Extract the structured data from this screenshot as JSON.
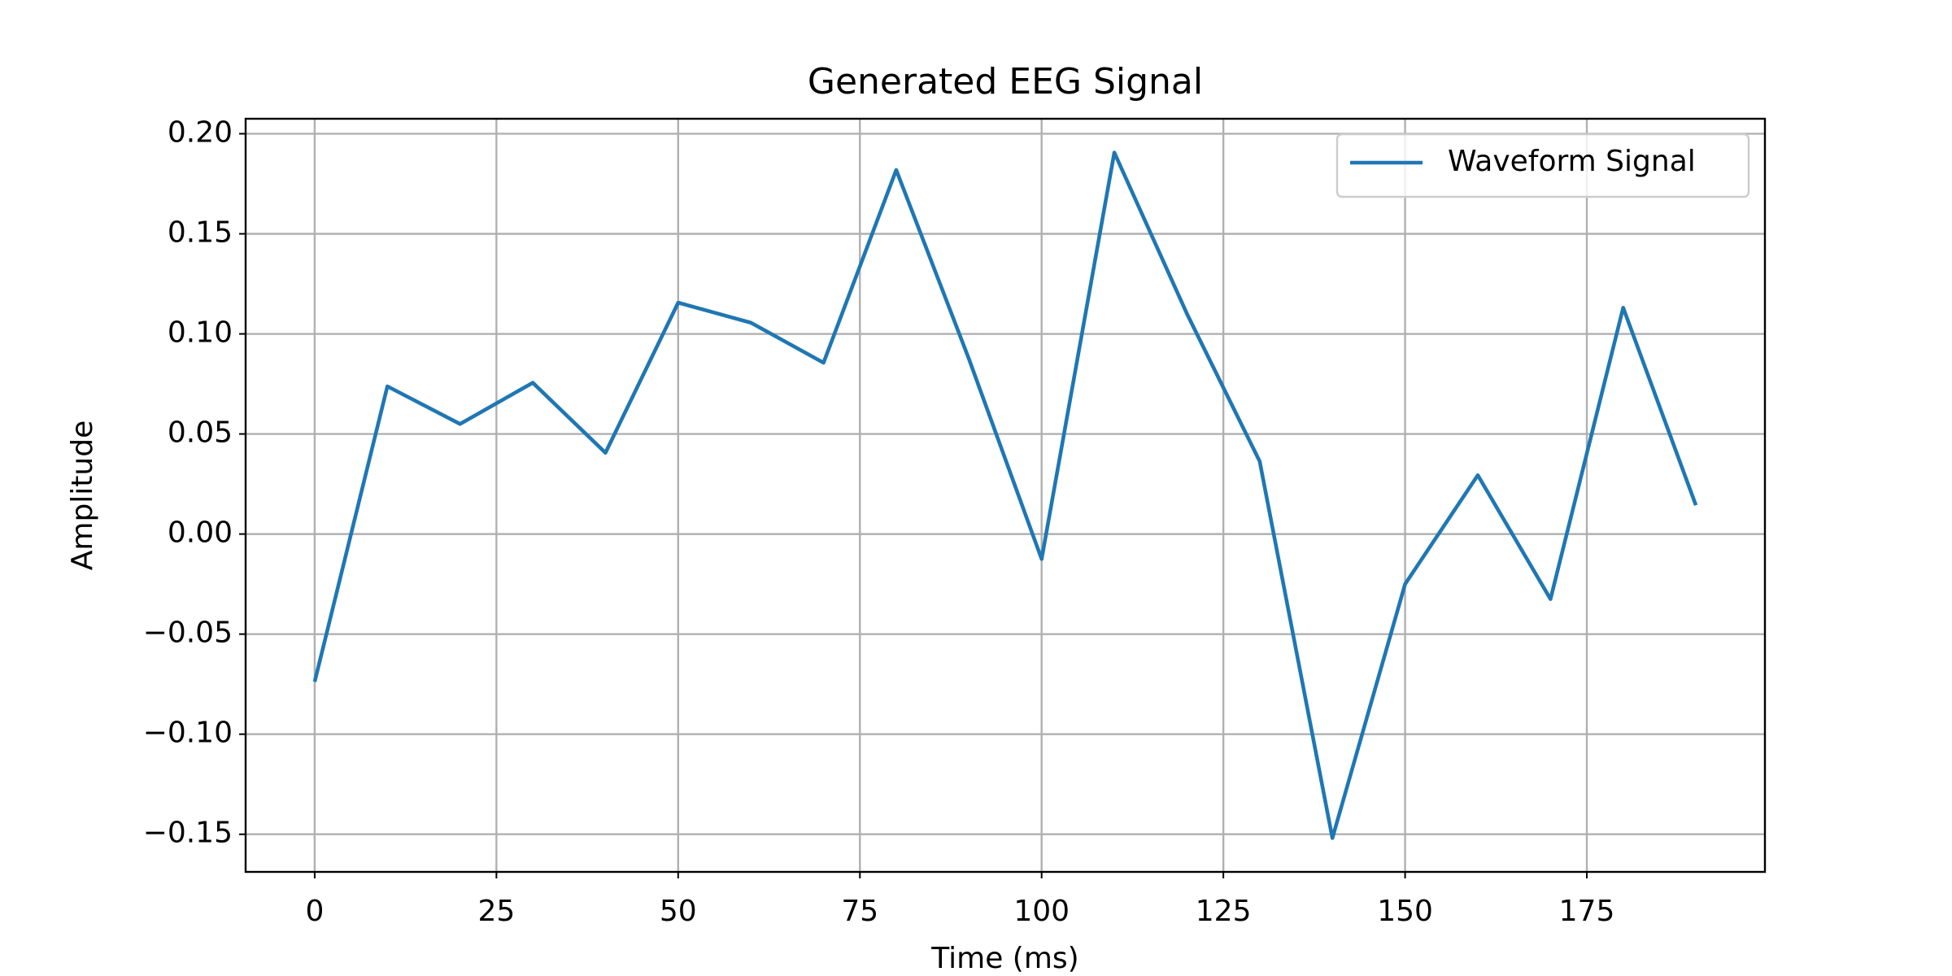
{
  "chart_data": {
    "type": "line",
    "title": "Generated EEG Signal",
    "x_label": "Time (ms)",
    "y_label": "Amplitude",
    "x": [
      0,
      10,
      20,
      30,
      40,
      50,
      60,
      70,
      80,
      90,
      100,
      110,
      120,
      130,
      140,
      150,
      160,
      170,
      180,
      190
    ],
    "series": [
      {
        "name": "Waveform Signal",
        "color": "#1f77b4",
        "values": [
          -0.0738,
          0.0738,
          0.055,
          0.0756,
          0.0406,
          0.1156,
          0.1056,
          0.0856,
          0.1819,
          0.0875,
          -0.0125,
          0.1906,
          0.11,
          0.0363,
          -0.1519,
          -0.025,
          0.0294,
          -0.0325,
          0.1131,
          0.0144
        ]
      }
    ],
    "xlim": [
      -9.5,
      199.5
    ],
    "xticks": [
      0,
      25,
      50,
      75,
      100,
      125,
      150,
      175
    ],
    "ylim": [
      -0.1688,
      0.2075
    ],
    "yticks": [
      {
        "value": -0.15,
        "label": "−0.15"
      },
      {
        "value": -0.1,
        "label": "−0.10"
      },
      {
        "value": -0.05,
        "label": "−0.05"
      },
      {
        "value": 0,
        "label": "0.00"
      },
      0.05,
      {
        "value": 0.1,
        "label": "0.10"
      },
      0.15,
      {
        "value": 0.2,
        "label": "0.20"
      }
    ],
    "grid": true,
    "legend": "upper right"
  }
}
